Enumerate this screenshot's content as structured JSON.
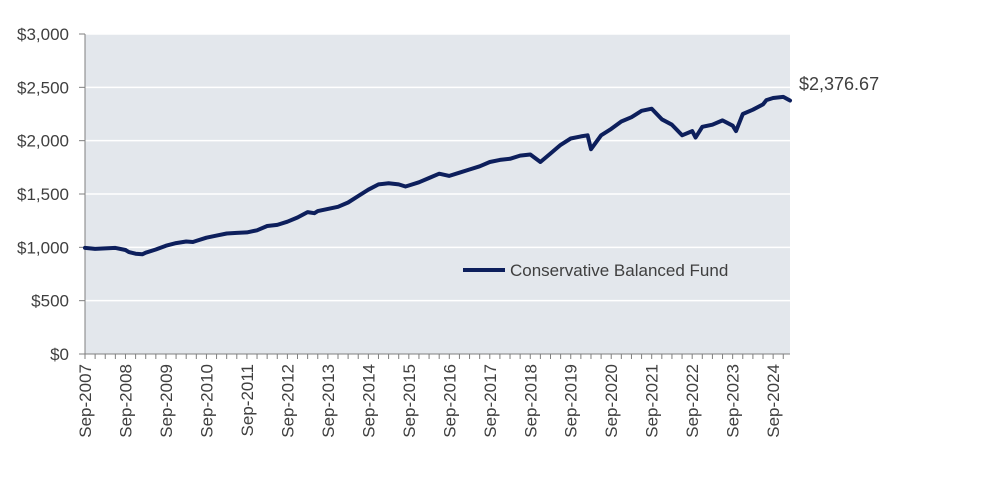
{
  "chart_data": {
    "type": "line",
    "title": "",
    "xlabel": "",
    "ylabel": "",
    "ylim": [
      0,
      3000
    ],
    "y_ticks": [
      "$0",
      "$500",
      "$1,000",
      "$1,500",
      "$2,000",
      "$2,500",
      "$3,000"
    ],
    "y_tick_values": [
      0,
      500,
      1000,
      1500,
      2000,
      2500,
      3000
    ],
    "x_ticks": [
      "Sep-2007",
      "Sep-2008",
      "Sep-2009",
      "Sep-2010",
      "Sep-2011",
      "Sep-2012",
      "Sep-2013",
      "Sep-2014",
      "Sep-2015",
      "Sep-2016",
      "Sep-2017",
      "Sep-2018",
      "Sep-2019",
      "Sep-2020",
      "Sep-2021",
      "Sep-2022",
      "Sep-2023",
      "Sep-2024"
    ],
    "x_start": "2007-09",
    "x_end": "2025-02",
    "grid": "horizontal",
    "legend_position": "lower-right",
    "end_label": "$2,376.67",
    "colors": {
      "line": "#0d1f5c",
      "plot_bg": "#e3e7ec",
      "grid": "#ffffff",
      "axis": "#7f7f7f",
      "text": "#3f3f3f"
    },
    "series": [
      {
        "name": "Conservative Balanced Fund",
        "x": [
          "2007-09",
          "2007-12",
          "2008-03",
          "2008-06",
          "2008-09",
          "2008-10",
          "2008-12",
          "2009-02",
          "2009-03",
          "2009-06",
          "2009-09",
          "2009-12",
          "2010-03",
          "2010-05",
          "2010-06",
          "2010-09",
          "2010-12",
          "2011-03",
          "2011-06",
          "2011-09",
          "2011-12",
          "2012-03",
          "2012-06",
          "2012-09",
          "2012-12",
          "2013-03",
          "2013-05",
          "2013-06",
          "2013-09",
          "2013-12",
          "2014-03",
          "2014-06",
          "2014-09",
          "2014-12",
          "2015-03",
          "2015-06",
          "2015-08",
          "2015-09",
          "2015-12",
          "2016-03",
          "2016-06",
          "2016-09",
          "2016-12",
          "2017-03",
          "2017-06",
          "2017-09",
          "2017-12",
          "2018-03",
          "2018-06",
          "2018-09",
          "2018-12",
          "2019-03",
          "2019-06",
          "2019-09",
          "2019-12",
          "2020-02",
          "2020-03",
          "2020-06",
          "2020-09",
          "2020-12",
          "2021-03",
          "2021-06",
          "2021-09",
          "2021-12",
          "2022-03",
          "2022-06",
          "2022-09",
          "2022-10",
          "2022-12",
          "2023-03",
          "2023-06",
          "2023-09",
          "2023-10",
          "2023-12",
          "2024-03",
          "2024-06",
          "2024-07",
          "2024-09",
          "2024-12",
          "2025-02"
        ],
        "values": [
          995,
          985,
          990,
          995,
          975,
          955,
          940,
          935,
          950,
          980,
          1015,
          1040,
          1055,
          1050,
          1060,
          1090,
          1110,
          1130,
          1135,
          1140,
          1160,
          1200,
          1210,
          1240,
          1280,
          1330,
          1320,
          1340,
          1360,
          1380,
          1420,
          1480,
          1540,
          1590,
          1600,
          1590,
          1570,
          1580,
          1610,
          1650,
          1690,
          1670,
          1700,
          1730,
          1760,
          1800,
          1820,
          1830,
          1860,
          1870,
          1800,
          1880,
          1960,
          2020,
          2040,
          2050,
          1920,
          2050,
          2110,
          2180,
          2220,
          2280,
          2300,
          2200,
          2150,
          2050,
          2090,
          2030,
          2130,
          2150,
          2190,
          2140,
          2090,
          2250,
          2290,
          2340,
          2380,
          2400,
          2410,
          2377
        ]
      }
    ]
  }
}
